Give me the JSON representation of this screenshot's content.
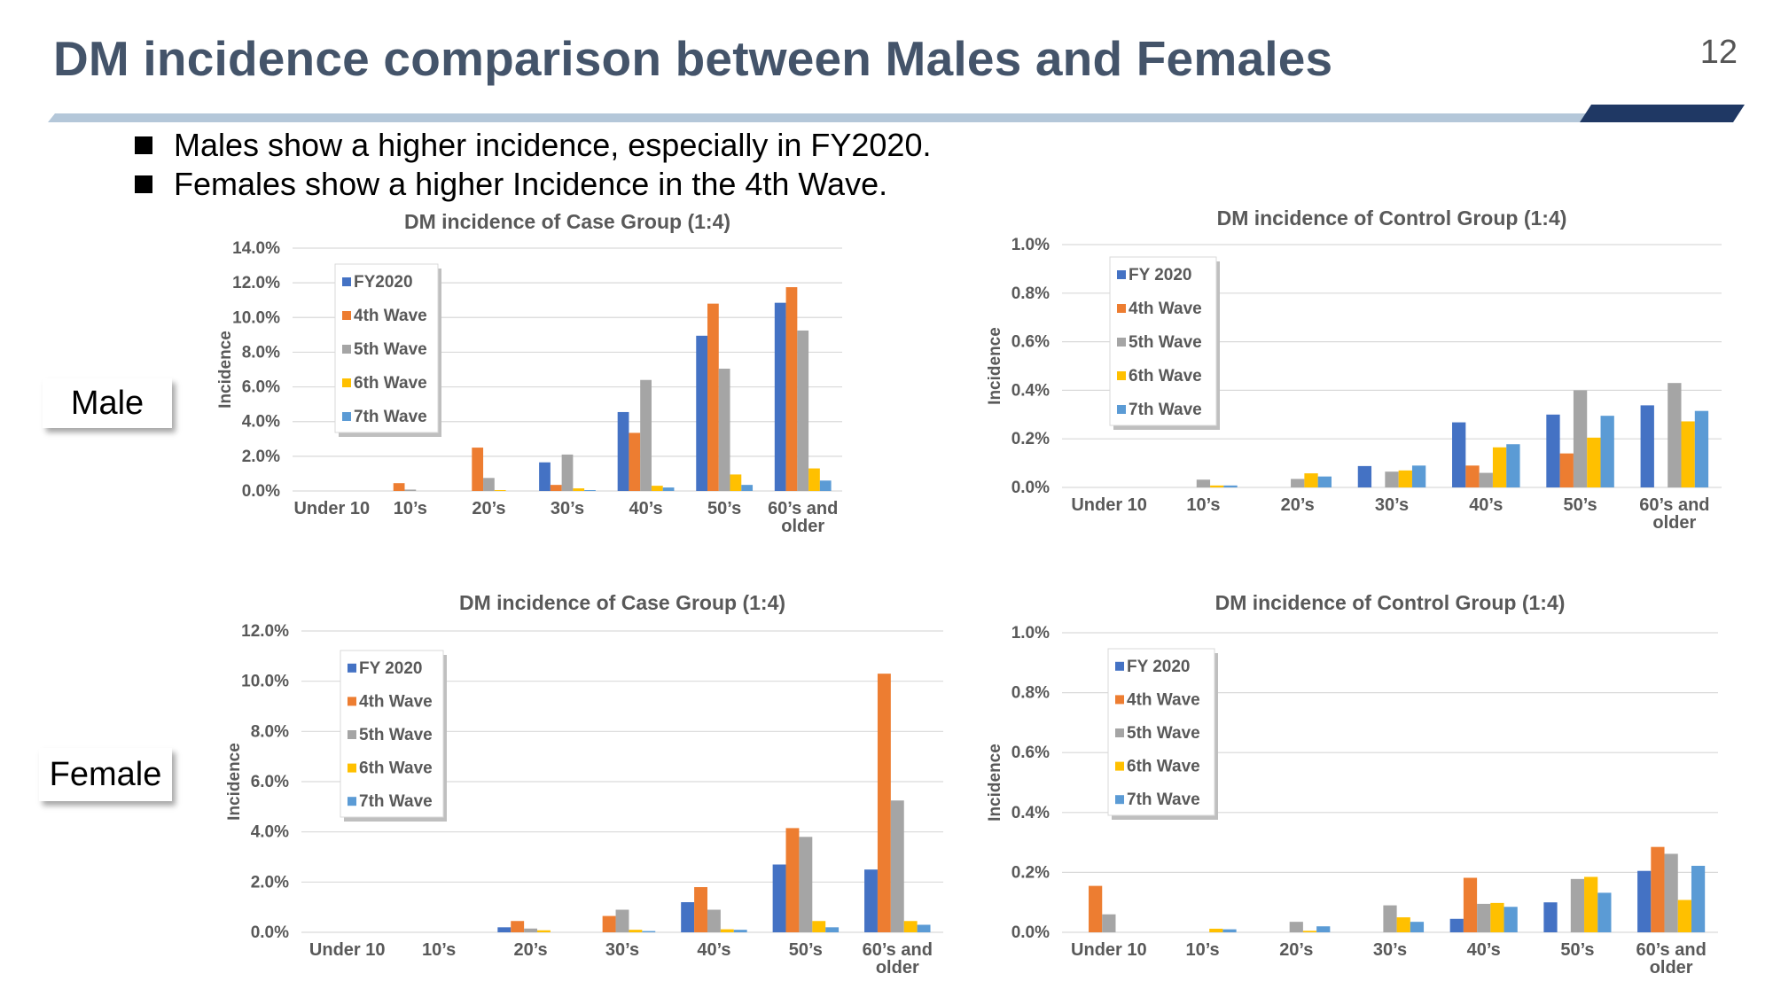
{
  "page": {
    "title": "DM incidence comparison between Males and Females",
    "page_number": "12",
    "bullets": [
      "Males show a higher incidence, especially in FY2020.",
      "Females show a higher Incidence in the 4th Wave."
    ],
    "row_labels": {
      "male": "Male",
      "female": "Female"
    }
  },
  "colors": {
    "title": "#44546a",
    "rule_light": "#b4c7d9",
    "rule_dark": "#1f3864",
    "series": [
      "#4472c4",
      "#ed7d31",
      "#a5a5a5",
      "#ffc000",
      "#5b9bd5"
    ]
  },
  "chart_data": [
    {
      "id": "male-case",
      "type": "bar",
      "title": "DM incidence of Case Group (1:4)",
      "ylabel": "Incidence",
      "xlabel": "",
      "categories": [
        "Under 10",
        "10’s",
        "20’s",
        "30’s",
        "40’s",
        "50’s",
        "60’s and older"
      ],
      "ylim": [
        0,
        14
      ],
      "yticks": [
        "0.0%",
        "2.0%",
        "4.0%",
        "6.0%",
        "8.0%",
        "10.0%",
        "12.0%",
        "14.0%"
      ],
      "grid": true,
      "legend_position": "top-left",
      "series": [
        {
          "name": "FY2020",
          "values": [
            0,
            0,
            0,
            1.65,
            4.55,
            8.95,
            10.85
          ]
        },
        {
          "name": "4th Wave",
          "values": [
            0,
            0.45,
            2.5,
            0.35,
            3.35,
            10.8,
            11.75
          ]
        },
        {
          "name": "5th Wave",
          "values": [
            0,
            0.08,
            0.75,
            2.1,
            6.4,
            7.05,
            9.25
          ]
        },
        {
          "name": "6th Wave",
          "values": [
            0,
            0,
            0.05,
            0.15,
            0.3,
            0.95,
            1.3
          ]
        },
        {
          "name": "7th Wave",
          "values": [
            0,
            0,
            0,
            0.05,
            0.2,
            0.35,
            0.6
          ]
        }
      ]
    },
    {
      "id": "male-control",
      "type": "bar",
      "title": "DM incidence of Control Group (1:4)",
      "ylabel": "Incidence",
      "xlabel": "",
      "categories": [
        "Under 10",
        "10’s",
        "20’s",
        "30’s",
        "40’s",
        "50’s",
        "60’s and older"
      ],
      "ylim": [
        0,
        1
      ],
      "yticks": [
        "0.0%",
        "0.2%",
        "0.4%",
        "0.6%",
        "0.8%",
        "1.0%"
      ],
      "grid": true,
      "legend_position": "top-left",
      "series": [
        {
          "name": "FY 2020",
          "values": [
            0,
            0,
            0,
            0.088,
            0.268,
            0.3,
            0.338
          ]
        },
        {
          "name": "4th Wave",
          "values": [
            0,
            0,
            0,
            0,
            0.09,
            0.14,
            0
          ]
        },
        {
          "name": "5th Wave",
          "values": [
            0,
            0.032,
            0.035,
            0.065,
            0.06,
            0.4,
            0.43
          ]
        },
        {
          "name": "6th Wave",
          "values": [
            0,
            0.008,
            0.058,
            0.07,
            0.165,
            0.205,
            0.272
          ]
        },
        {
          "name": "7th Wave",
          "values": [
            0,
            0.008,
            0.045,
            0.09,
            0.178,
            0.295,
            0.315
          ]
        }
      ]
    },
    {
      "id": "female-case",
      "type": "bar",
      "title": "DM incidence of Case Group (1:4)",
      "ylabel": "Incidence",
      "xlabel": "",
      "categories": [
        "Under 10",
        "10’s",
        "20’s",
        "30’s",
        "40’s",
        "50’s",
        "60’s and older"
      ],
      "ylim": [
        0,
        12
      ],
      "yticks": [
        "0.0%",
        "2.0%",
        "4.0%",
        "6.0%",
        "8.0%",
        "10.0%",
        "12.0%"
      ],
      "grid": true,
      "legend_position": "top-left",
      "series": [
        {
          "name": "FY 2020",
          "values": [
            0,
            0,
            0.2,
            0,
            1.2,
            2.7,
            2.5
          ]
        },
        {
          "name": "4th Wave",
          "values": [
            0,
            0,
            0.45,
            0.65,
            1.8,
            4.15,
            10.3
          ]
        },
        {
          "name": "5th Wave",
          "values": [
            0,
            0,
            0.15,
            0.9,
            0.9,
            3.8,
            5.25
          ]
        },
        {
          "name": "6th Wave",
          "values": [
            0,
            0,
            0.08,
            0.1,
            0.12,
            0.45,
            0.45
          ]
        },
        {
          "name": "7th Wave",
          "values": [
            0,
            0,
            0,
            0.05,
            0.1,
            0.2,
            0.3
          ]
        }
      ]
    },
    {
      "id": "female-control",
      "type": "bar",
      "title": "DM incidence of Control Group (1:4)",
      "ylabel": "Incidence",
      "xlabel": "",
      "categories": [
        "Under 10",
        "10’s",
        "20’s",
        "30’s",
        "40’s",
        "50’s",
        "60’s and older"
      ],
      "ylim": [
        0,
        1
      ],
      "yticks": [
        "0.0%",
        "0.2%",
        "0.4%",
        "0.6%",
        "0.8%",
        "1.0%"
      ],
      "grid": true,
      "legend_position": "top-left",
      "series": [
        {
          "name": "FY 2020",
          "values": [
            0,
            0,
            0,
            0,
            0.045,
            0.1,
            0.205
          ]
        },
        {
          "name": "4th Wave",
          "values": [
            0.155,
            0,
            0,
            0,
            0.182,
            0,
            0.285
          ]
        },
        {
          "name": "5th Wave",
          "values": [
            0.06,
            0,
            0.035,
            0.09,
            0.095,
            0.178,
            0.262
          ]
        },
        {
          "name": "6th Wave",
          "values": [
            0,
            0.012,
            0.005,
            0.05,
            0.098,
            0.185,
            0.108
          ]
        },
        {
          "name": "7th Wave",
          "values": [
            0,
            0.01,
            0.02,
            0.035,
            0.085,
            0.132,
            0.222
          ]
        }
      ]
    }
  ]
}
